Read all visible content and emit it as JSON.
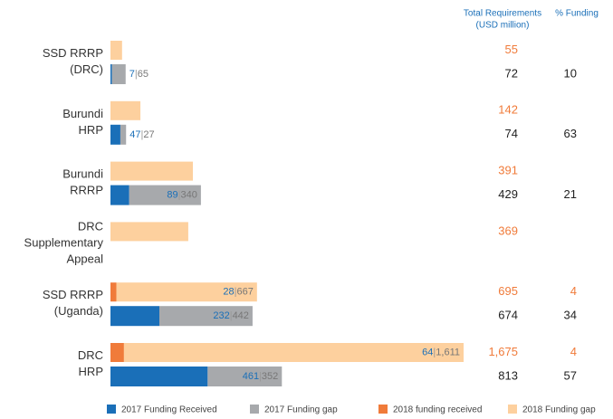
{
  "chart_data": {
    "type": "bar",
    "orientation": "horizontal",
    "categories": [
      "SSD RRRP\n(DRC)",
      "Burundi\nHRP",
      "Burundi\nRRRP",
      "DRC\nSupplementary\nAppeal",
      "SSD RRRP\n(Uganda)",
      "DRC\nHRP"
    ],
    "xlim": [
      0,
      1675
    ],
    "label_separator": "|",
    "series": [
      {
        "name": "2017 Funding Received",
        "color": "#1a6fb8",
        "values": [
          7,
          47,
          89,
          null,
          232,
          461
        ],
        "value_labels": [
          "7",
          "47",
          "89",
          null,
          "232",
          "461"
        ]
      },
      {
        "name": "2017 Funding gap",
        "color": "#a7a9ac",
        "values": [
          65,
          27,
          340,
          null,
          442,
          352
        ],
        "value_labels": [
          "65",
          "27",
          "340",
          null,
          "442",
          "352"
        ]
      },
      {
        "name": "2018 funding received",
        "color": "#f07b3a",
        "values": [
          null,
          null,
          null,
          null,
          28,
          64
        ],
        "value_labels": [
          null,
          null,
          null,
          null,
          "28",
          "64"
        ]
      },
      {
        "name": "2018 Funding gap",
        "color": "#fdd09e",
        "values": [
          55,
          142,
          391,
          369,
          667,
          1611
        ],
        "value_labels": [
          null,
          null,
          null,
          null,
          "667",
          "1,611"
        ]
      }
    ],
    "columns": [
      {
        "title": [
          "Total Requirements",
          "(USD million)"
        ],
        "rows": [
          {
            "color": "#f07b3a",
            "values": [
              55,
              142,
              391,
              369,
              695,
              1675
            ],
            "value_labels": [
              "55",
              "142",
              "391",
              "369",
              "695",
              "1,675"
            ]
          },
          {
            "color": "#222222",
            "values": [
              72,
              74,
              429,
              null,
              674,
              813
            ],
            "value_labels": [
              "72",
              "74",
              "429",
              null,
              "674",
              "813"
            ]
          }
        ]
      },
      {
        "title": [
          "% Funding"
        ],
        "rows": [
          {
            "color": "#f07b3a",
            "values": [
              null,
              null,
              null,
              null,
              4,
              4
            ],
            "value_labels": [
              null,
              null,
              null,
              null,
              "4",
              "4"
            ]
          },
          {
            "color": "#222222",
            "values": [
              10,
              63,
              21,
              null,
              34,
              57
            ],
            "value_labels": [
              "10",
              "63",
              "21",
              null,
              "34",
              "57"
            ]
          }
        ]
      }
    ]
  }
}
